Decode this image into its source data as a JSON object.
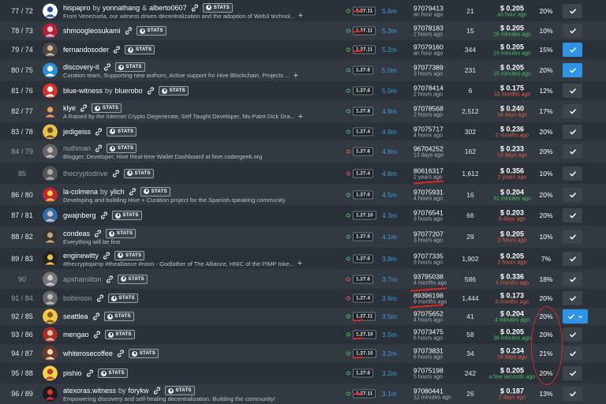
{
  "rows": [
    {
      "rank": "77 / 72",
      "name": "hispapro",
      "by": "by",
      "owner": "yonnathang",
      "and": "&",
      "owner2": "alberto0607",
      "stats": "STATS",
      "desc": "From Venezuela, our witness drives decentralization and the adoption of Web3 technol...",
      "plus": true,
      "ver": "1.27.11",
      "ver_status": "green",
      "feed": "5.6m",
      "block": "97079413",
      "block_time": "an hour ago",
      "missed": "21",
      "price": "$ 0.205",
      "price_time": "an hour ago",
      "price_color": "green",
      "apr": "20%",
      "vote": false,
      "avatar": "logo-blue",
      "dim": false
    },
    {
      "rank": "78 / 73",
      "name": "shmoogleosukami",
      "stats": "STATS",
      "ver": "1.27.11",
      "ver_status": "green",
      "feed": "5.3m",
      "block": "97078183",
      "block_time": "2 hours ago",
      "missed": "15",
      "price": "$ 0.205",
      "price_time": "26 minutes ago",
      "price_color": "green",
      "apr": "10%",
      "vote": false,
      "avatar": "heart-red",
      "dim": false
    },
    {
      "rank": "79 / 74",
      "name": "fernandosoder",
      "stats": "STATS",
      "ver": "1.27.11",
      "ver_status": "green",
      "feed": "5.2m",
      "block": "97079160",
      "block_time": "an hour ago",
      "missed": "344",
      "price": "$ 0.205",
      "price_time": "15 minutes ago",
      "price_color": "green",
      "apr": "15%",
      "vote": true,
      "avatar": "person-dark",
      "dim": false
    },
    {
      "rank": "80 / 75",
      "name": "discovery-it",
      "stats": "STATS",
      "desc": "Curation team, Supporting new authors, Active support for Hive Blockchain, Projects ...",
      "plus": true,
      "ver": "1.27.6",
      "ver_status": "green",
      "feed": "5.0m",
      "block": "97077389",
      "block_time": "3 hours ago",
      "missed": "231",
      "price": "$ 0.205",
      "price_time": "15 minutes ago",
      "price_color": "green",
      "apr": "20%",
      "vote": true,
      "avatar": "logo-blue2",
      "dim": false
    },
    {
      "rank": "81 / 76",
      "name": "blue-witness",
      "by": "by",
      "owner": "bluerobo",
      "stats": "STATS",
      "ver": "1.27.6",
      "ver_status": "green",
      "feed": "5.0m",
      "block": "97078414",
      "block_time": "2 hours ago",
      "missed": "6",
      "price": "$ 0.175",
      "price_time": "10 months ago",
      "price_color": "red",
      "apr": "12%",
      "vote": false,
      "avatar": "robot-red",
      "dim": false
    },
    {
      "rank": "82 / 77",
      "name": "klye",
      "stats": "STATS",
      "desc": "A Raised by the Internet Crypto Degenerate, Self Taught Developer, Ms-Paint Dick Dra...",
      "plus": true,
      "ver": "1.27.8",
      "ver_status": "green",
      "feed": "4.9m",
      "block": "97078568",
      "block_time": "2 hours ago",
      "missed": "2,512",
      "price": "$ 0.240",
      "price_time": "16 days ago",
      "price_color": "red",
      "apr": "17%",
      "vote": false,
      "avatar": "person-orange",
      "dim": false
    },
    {
      "rank": "83 / 78",
      "name": "jedigeiss",
      "stats": "STATS",
      "ver": "1.27.4",
      "ver_status": "green",
      "feed": "4.9m",
      "block": "97075717",
      "block_time": "4 hours ago",
      "missed": "302",
      "price": "$ 0.236",
      "price_time": "2 months ago",
      "price_color": "red",
      "apr": "20%",
      "vote": false,
      "avatar": "person-yellow",
      "dim": false
    },
    {
      "rank": "84 / 79",
      "name": "nuthman",
      "stats": "STATS",
      "desc": "Blogger, Developer, Hive Real-time Wallet Dashboard at hive.codergeek.org",
      "ver": "1.27.6",
      "ver_status": "red",
      "feed": "4.8m",
      "block": "96704252",
      "block_time": "13 days ago",
      "missed": "162",
      "price": "$ 0.233",
      "price_time": "13 days ago",
      "price_color": "red",
      "apr": "20%",
      "vote": false,
      "avatar": "person-gray",
      "dim": true
    },
    {
      "rank": "85",
      "name": "thecryptodrive",
      "stats": "STATS",
      "ver": "1.27.4",
      "ver_status": "red",
      "feed": "4.8m",
      "block": "80616317",
      "block_time": "2 years ago",
      "missed": "1,612",
      "price": "$ 0.356",
      "price_time": "2 years ago",
      "price_color": "red",
      "apr": "10%",
      "vote": false,
      "avatar": "person-gray2",
      "dim": true
    },
    {
      "rank": "86 / 80",
      "name": "la-colmena",
      "by": "by",
      "owner": "ylich",
      "stats": "STATS",
      "desc": "Developing and building Hive + Curation project for the Spanish speaking community",
      "ver": "1.27.6",
      "ver_status": "green",
      "feed": "4.5m",
      "block": "97075931",
      "block_time": "4 hours ago",
      "missed": "16",
      "price": "$ 0.204",
      "price_time": "31 minutes ago",
      "price_color": "green",
      "apr": "20%",
      "vote": false,
      "avatar": "bee-red",
      "dim": false
    },
    {
      "rank": "87 / 81",
      "name": "gwajnberg",
      "stats": "STATS",
      "ver": "1.27.10",
      "ver_status": "green",
      "feed": "4.3m",
      "block": "97076541",
      "block_time": "3 hours ago",
      "missed": "66",
      "price": "$ 0.203",
      "price_time": "6 days ago",
      "price_color": "red",
      "apr": "20%",
      "vote": false,
      "avatar": "person-blue",
      "dim": false
    },
    {
      "rank": "88 / 82",
      "name": "condeas",
      "stats": "STATS",
      "desc": "Everything will be fine",
      "ver": "1.27.6",
      "ver_status": "green",
      "feed": "4.1m",
      "block": "97077207",
      "block_time": "3 hours ago",
      "missed": "29",
      "price": "$ 0.205",
      "price_time": "2 hours ago",
      "price_color": "red",
      "apr": "10%",
      "vote": false,
      "avatar": "person-dark2",
      "dim": false
    },
    {
      "rank": "89 / 83",
      "name": "enginewitty",
      "stats": "STATS",
      "desc": "#thecryptopimp #thealliance #nism - Godfather of The Alliance, HNIC of the PIMP toke...",
      "plus": true,
      "ver": "1.27.6",
      "ver_status": "green",
      "feed": "3.8m",
      "block": "97077335",
      "block_time": "3 hours ago",
      "missed": "1,902",
      "price": "$ 0.205",
      "price_time": "2 hours ago",
      "price_color": "red",
      "apr": "7%",
      "vote": false,
      "avatar": "logo-gold",
      "dim": false
    },
    {
      "rank": "90",
      "name": "apshamilton",
      "stats": "STATS",
      "ver": "1.27.6",
      "ver_status": "red",
      "feed": "3.7m",
      "block": "93795038",
      "block_time": "4 months ago",
      "missed": "586",
      "price": "$ 0.336",
      "price_time": "4 months ago",
      "price_color": "red",
      "apr": "18%",
      "vote": false,
      "avatar": "person-gray3",
      "dim": true
    },
    {
      "rank": "91 / 84",
      "name": "bobinson",
      "stats": "STATS",
      "ver": "1.27.4",
      "ver_status": "red",
      "feed": "3.6m",
      "block": "89396198",
      "block_time": "9 months ago",
      "missed": "1,444",
      "price": "$ 0.173",
      "price_time": "9 months ago",
      "price_color": "red",
      "apr": "20%",
      "vote": false,
      "avatar": "person-gray4",
      "dim": true
    },
    {
      "rank": "92 / 85",
      "name": "seattlea",
      "stats": "STATS",
      "ver": "1.27.11",
      "ver_status": "green",
      "feed": "3.5m",
      "block": "97075652",
      "block_time": "4 hours ago",
      "missed": "41",
      "price": "$ 0.204",
      "price_time": "4 minutes ago",
      "price_color": "green",
      "apr": "20%",
      "vote": true,
      "vote_dropdown": true,
      "avatar": "face-yellow",
      "dim": false
    },
    {
      "rank": "93 / 86",
      "name": "mengao",
      "stats": "STATS",
      "ver": "1.27.10",
      "ver_status": "green",
      "feed": "3.5m",
      "block": "97073475",
      "block_time": "6 hours ago",
      "missed": "58",
      "price": "$ 0.205",
      "price_time": "38 minutes ago",
      "price_color": "green",
      "apr": "20%",
      "vote": false,
      "avatar": "person-red",
      "dim": false
    },
    {
      "rank": "94 / 87",
      "name": "whiterosecoffee",
      "stats": "STATS",
      "ver": "1.27.10",
      "ver_status": "green",
      "feed": "3.2m",
      "block": "97073831",
      "block_time": "6 hours ago",
      "missed": "34",
      "price": "$ 0.234",
      "price_time": "16 days ago",
      "price_color": "red",
      "apr": "21%",
      "vote": false,
      "avatar": "coffee-brown",
      "dim": false
    },
    {
      "rank": "95 / 88",
      "name": "pishio",
      "stats": "STATS",
      "ver": "1.27.6",
      "ver_status": "green",
      "feed": "3.2m",
      "block": "97075198",
      "block_time": "5 hours ago",
      "missed": "242",
      "price": "$ 0.205",
      "price_time": "a few seconds ago",
      "price_color": "green",
      "apr": "20%",
      "vote": false,
      "avatar": "face-yellow2",
      "dim": false
    },
    {
      "rank": "96 / 89",
      "name": "atexoras.witness",
      "by": "by",
      "owner": "forykw",
      "stats": "STATS",
      "desc": "Empowering discovery and self-healing decentralization. Building the community!",
      "ver": "1.27.11",
      "ver_status": "green",
      "feed": "3.1m",
      "block": "97080441",
      "block_time": "12 minutes ago",
      "missed": "26",
      "price": "$ 0.187",
      "price_time": "2 days ago",
      "price_color": "red",
      "apr": "13%",
      "vote": false,
      "avatar": "logo-red",
      "dim": false
    }
  ],
  "colors": {
    "green": "#45c35f",
    "red": "#e35b48",
    "vote_active": "#2f93e6",
    "link": "#3a9fd6"
  },
  "icons": {
    "link": "link-icon",
    "stats": "stats-icon",
    "vote": "check-icon",
    "vote_dropdown": "chevron-down-icon",
    "plus": "plus-icon"
  }
}
